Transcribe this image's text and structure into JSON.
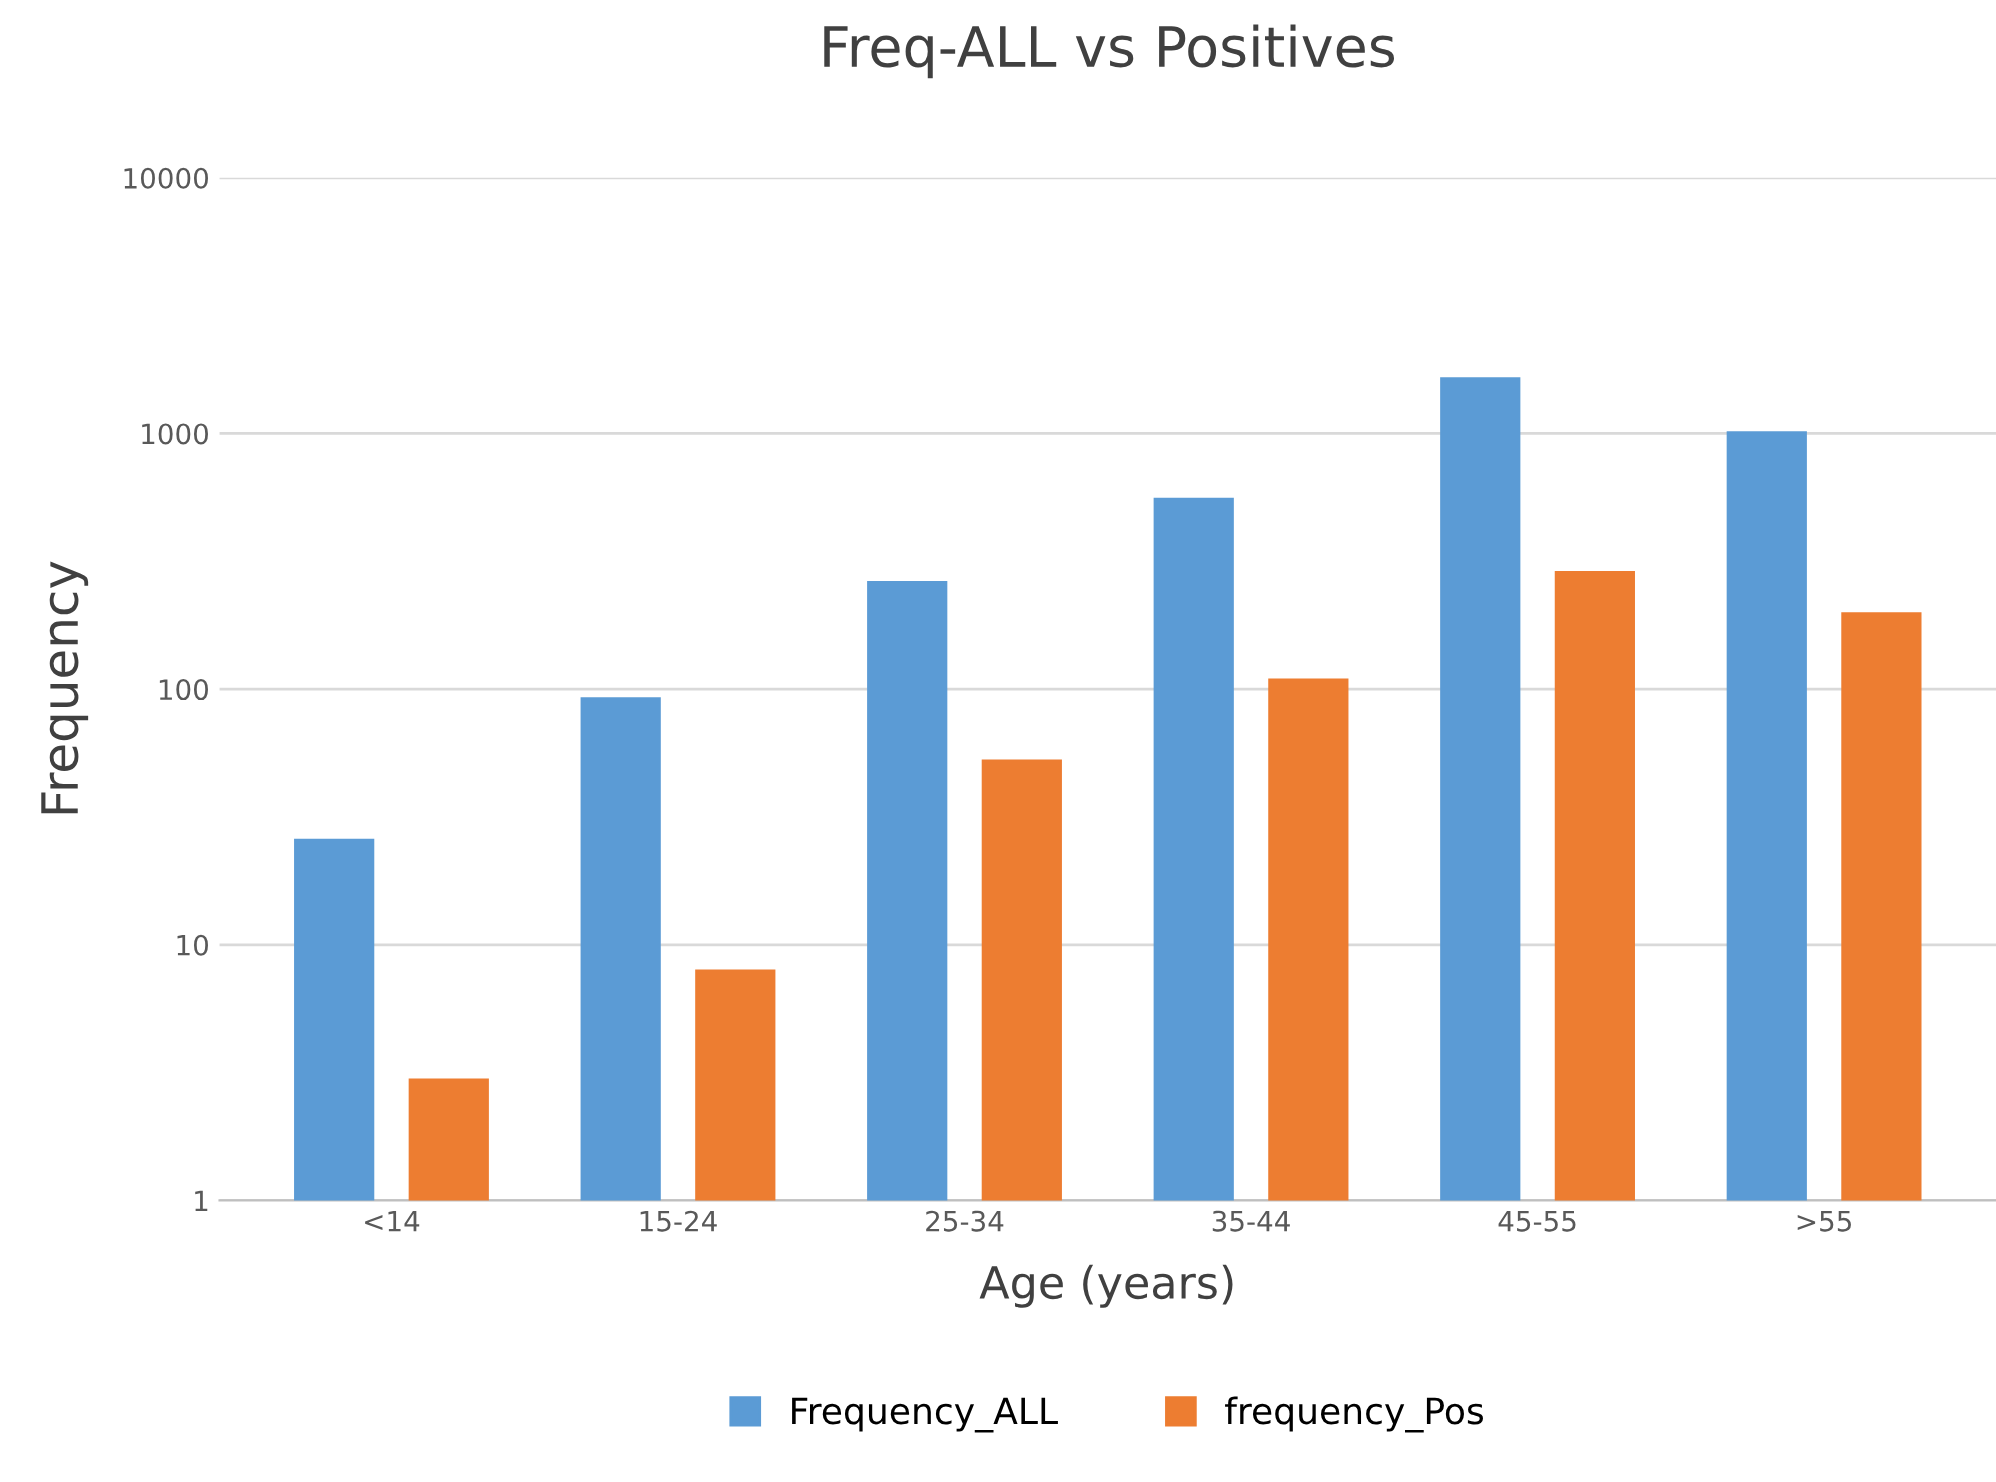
{
  "chart_data": {
    "type": "bar",
    "title": "Freq-ALL vs Positives",
    "xlabel": "Age (years)",
    "ylabel": "Frequency",
    "categories": [
      "<14",
      "15-24",
      "25-34",
      "35-44",
      "45-55",
      ">55"
    ],
    "series": [
      {
        "name": "Frequency_ALL",
        "color": "#5b9bd5",
        "values": [
          26,
          93,
          265,
          560,
          1660,
          1020
        ]
      },
      {
        "name": "frequency_Pos",
        "color": "#ed7d31",
        "values": [
          3,
          8,
          53,
          110,
          290,
          200
        ]
      }
    ],
    "log": "y",
    "ylim": [
      1,
      10000
    ],
    "yticks": [
      1,
      10,
      100,
      1000,
      10000
    ],
    "grid": "y",
    "legend": "bottom"
  }
}
